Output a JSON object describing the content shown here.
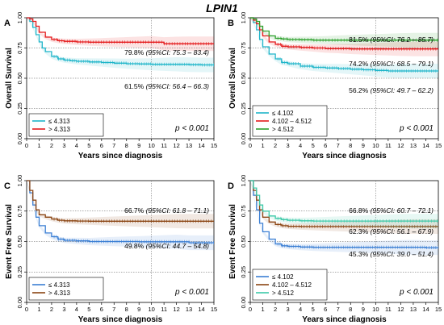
{
  "title": "LPIN1",
  "chart_data": [
    {
      "type": "line",
      "panel_label": "A",
      "xlabel": "Years since diagnosis",
      "ylabel": "Overall Survival",
      "xlim": [
        0,
        15
      ],
      "ylim": [
        0,
        1
      ],
      "xticks": [
        "0",
        "1",
        "2",
        "3",
        "4",
        "5",
        "6",
        "7",
        "8",
        "9",
        "10",
        "11",
        "12",
        "13",
        "14",
        "15"
      ],
      "yticks": [
        "0.00",
        "0.25",
        "0.50",
        "0.75",
        "1.00"
      ],
      "p_value": "p < 0.001",
      "legend_position": "bottom-left",
      "series": [
        {
          "name": "≤ 4.313",
          "color": "#1fb5c9",
          "x": [
            0,
            0.25,
            0.5,
            0.75,
            1,
            1.25,
            1.5,
            2,
            2.5,
            3,
            3.5,
            4,
            5,
            6,
            7,
            8,
            9,
            10,
            11,
            12,
            13,
            14,
            15
          ],
          "y": [
            1,
            0.97,
            0.92,
            0.86,
            0.8,
            0.75,
            0.72,
            0.68,
            0.66,
            0.65,
            0.645,
            0.64,
            0.635,
            0.63,
            0.625,
            0.62,
            0.618,
            0.615,
            0.615,
            0.615,
            0.612,
            0.61,
            0.61
          ]
        },
        {
          "name": "> 4.313",
          "color": "#e41a1c",
          "x": [
            0,
            0.25,
            0.5,
            0.75,
            1,
            1.5,
            2,
            2.5,
            3,
            4,
            5,
            6,
            7,
            8,
            9,
            10,
            11,
            12,
            13,
            14,
            15
          ],
          "y": [
            1,
            0.99,
            0.97,
            0.93,
            0.88,
            0.84,
            0.82,
            0.81,
            0.805,
            0.8,
            0.798,
            0.798,
            0.798,
            0.798,
            0.798,
            0.798,
            0.785,
            0.785,
            0.785,
            0.785,
            0.785
          ]
        }
      ],
      "annotations": [
        {
          "value": "79.8%",
          "ci": "(95%CI: 75.3 – 83.4)"
        },
        {
          "value": "61.5%",
          "ci": "(95%CI: 56.4 – 66.3)"
        }
      ]
    },
    {
      "type": "line",
      "panel_label": "B",
      "xlabel": "Years since diagnosis",
      "ylabel": "Overall Survival",
      "xlim": [
        0,
        15
      ],
      "ylim": [
        0,
        1
      ],
      "xticks": [
        "0",
        "1",
        "2",
        "3",
        "4",
        "5",
        "6",
        "7",
        "8",
        "9",
        "10",
        "11",
        "12",
        "13",
        "14",
        "15"
      ],
      "yticks": [
        "0.00",
        "0.25",
        "0.50",
        "0.75",
        "1.00"
      ],
      "p_value": "p < 0.001",
      "legend_position": "bottom-left",
      "series": [
        {
          "name": "≤ 4.102",
          "color": "#1fb5c9",
          "x": [
            0,
            0.25,
            0.5,
            0.75,
            1,
            1.5,
            2,
            2.5,
            3,
            4,
            5,
            6,
            7,
            8,
            9,
            10,
            11,
            12,
            13,
            14,
            15
          ],
          "y": [
            1,
            0.96,
            0.9,
            0.82,
            0.76,
            0.7,
            0.66,
            0.63,
            0.62,
            0.6,
            0.59,
            0.585,
            0.58,
            0.575,
            0.57,
            0.565,
            0.56,
            0.56,
            0.56,
            0.56,
            0.56
          ]
        },
        {
          "name": "4.102 – 4.512",
          "color": "#e41a1c",
          "x": [
            0,
            0.25,
            0.5,
            0.75,
            1,
            1.5,
            2,
            2.5,
            3,
            4,
            5,
            6,
            7,
            8,
            9,
            10,
            11,
            12,
            13,
            14,
            15
          ],
          "y": [
            1,
            0.98,
            0.95,
            0.9,
            0.85,
            0.8,
            0.78,
            0.765,
            0.76,
            0.755,
            0.75,
            0.745,
            0.745,
            0.742,
            0.742,
            0.742,
            0.742,
            0.742,
            0.742,
            0.742,
            0.742
          ]
        },
        {
          "name": "> 4.512",
          "color": "#2ca02c",
          "x": [
            0,
            0.25,
            0.5,
            0.75,
            1,
            1.5,
            2,
            2.5,
            3,
            4,
            5,
            6,
            7,
            8,
            9,
            10,
            11,
            12,
            13,
            14,
            15
          ],
          "y": [
            1,
            0.99,
            0.97,
            0.93,
            0.89,
            0.85,
            0.83,
            0.825,
            0.82,
            0.818,
            0.815,
            0.815,
            0.815,
            0.815,
            0.815,
            0.815,
            0.815,
            0.815,
            0.815,
            0.815,
            0.815
          ]
        }
      ],
      "annotations": [
        {
          "value": "81.5%",
          "ci": "(95%CI: 76.2 – 85.7)"
        },
        {
          "value": "74.2%",
          "ci": "(95%CI: 68.5 – 79.1)"
        },
        {
          "value": "56.2%",
          "ci": "(95%CI: 49.7 – 62.2)"
        }
      ]
    },
    {
      "type": "line",
      "panel_label": "C",
      "xlabel": "Years since diagnosis",
      "ylabel": "Event Free Survival",
      "xlim": [
        0,
        15
      ],
      "ylim": [
        0,
        1
      ],
      "xticks": [
        "0",
        "1",
        "2",
        "3",
        "4",
        "5",
        "6",
        "7",
        "8",
        "9",
        "10",
        "11",
        "12",
        "13",
        "14",
        "15"
      ],
      "yticks": [
        "0.00",
        "0.25",
        "0.50",
        "0.75",
        "1.00"
      ],
      "p_value": "p < 0.001",
      "legend_position": "bottom-left",
      "series": [
        {
          "name": "≤ 4.313",
          "color": "#3b7fd4",
          "x": [
            0,
            0.25,
            0.5,
            0.75,
            1,
            1.5,
            2,
            2.5,
            3,
            4,
            5,
            6,
            7,
            8,
            9,
            10,
            11,
            12,
            13,
            14,
            15
          ],
          "y": [
            1,
            0.9,
            0.8,
            0.7,
            0.63,
            0.57,
            0.54,
            0.52,
            0.51,
            0.505,
            0.5,
            0.5,
            0.5,
            0.5,
            0.498,
            0.498,
            0.498,
            0.498,
            0.49,
            0.49,
            0.49
          ]
        },
        {
          "name": "> 4.313",
          "color": "#8b4513",
          "x": [
            0,
            0.25,
            0.5,
            0.75,
            1,
            1.5,
            2,
            2.5,
            3,
            4,
            5,
            6,
            7,
            8,
            9,
            10,
            11,
            12,
            13,
            14,
            15
          ],
          "y": [
            1,
            0.92,
            0.84,
            0.76,
            0.72,
            0.7,
            0.685,
            0.675,
            0.67,
            0.668,
            0.667,
            0.667,
            0.667,
            0.667,
            0.667,
            0.667,
            0.667,
            0.667,
            0.667,
            0.667,
            0.667
          ]
        }
      ],
      "annotations": [
        {
          "value": "66.7%",
          "ci": "(95%CI: 61.8 – 71.1)"
        },
        {
          "value": "49.8%",
          "ci": "(95%CI: 44.7 – 54.8)"
        }
      ]
    },
    {
      "type": "line",
      "panel_label": "D",
      "xlabel": "Years since diagnosis",
      "ylabel": "Event Free Survival",
      "xlim": [
        0,
        15
      ],
      "ylim": [
        0,
        1
      ],
      "xticks": [
        "0",
        "1",
        "2",
        "3",
        "4",
        "5",
        "6",
        "7",
        "8",
        "9",
        "10",
        "11",
        "12",
        "13",
        "14",
        "15"
      ],
      "yticks": [
        "0.00",
        "0.25",
        "0.50",
        "0.75",
        "1.00"
      ],
      "p_value": "p < 0.001",
      "legend_position": "bottom-left",
      "series": [
        {
          "name": "≤ 4.102",
          "color": "#3b7fd4",
          "x": [
            0,
            0.25,
            0.5,
            0.75,
            1,
            1.5,
            2,
            2.5,
            3,
            4,
            5,
            6,
            7,
            8,
            9,
            10,
            11,
            12,
            13,
            14,
            15
          ],
          "y": [
            1,
            0.88,
            0.76,
            0.65,
            0.58,
            0.52,
            0.48,
            0.465,
            0.46,
            0.455,
            0.453,
            0.453,
            0.453,
            0.453,
            0.453,
            0.453,
            0.453,
            0.453,
            0.453,
            0.45,
            0.45
          ]
        },
        {
          "name": "4.102 – 4.512",
          "color": "#8b4513",
          "x": [
            0,
            0.25,
            0.5,
            0.75,
            1,
            1.5,
            2,
            2.5,
            3,
            4,
            5,
            6,
            7,
            8,
            9,
            10,
            11,
            12,
            13,
            14,
            15
          ],
          "y": [
            1,
            0.92,
            0.84,
            0.76,
            0.7,
            0.66,
            0.64,
            0.63,
            0.625,
            0.623,
            0.623,
            0.623,
            0.623,
            0.623,
            0.623,
            0.623,
            0.623,
            0.623,
            0.623,
            0.623,
            0.623
          ]
        },
        {
          "name": "> 4.512",
          "color": "#3cc9a8",
          "x": [
            0,
            0.25,
            0.5,
            0.75,
            1,
            1.5,
            2,
            2.5,
            3,
            4,
            5,
            6,
            7,
            8,
            9,
            10,
            11,
            12,
            13,
            14,
            15
          ],
          "y": [
            1,
            0.94,
            0.88,
            0.8,
            0.75,
            0.71,
            0.69,
            0.68,
            0.675,
            0.67,
            0.668,
            0.668,
            0.668,
            0.668,
            0.668,
            0.668,
            0.668,
            0.668,
            0.668,
            0.668,
            0.668
          ]
        }
      ],
      "annotations": [
        {
          "value": "66.8%",
          "ci": "(95%CI: 60.7 – 72.1)"
        },
        {
          "value": "62.3%",
          "ci": "(95%CI: 56.1 – 67.9)"
        },
        {
          "value": "45.3%",
          "ci": "(95%CI: 39.0 – 51.4)"
        }
      ]
    }
  ]
}
